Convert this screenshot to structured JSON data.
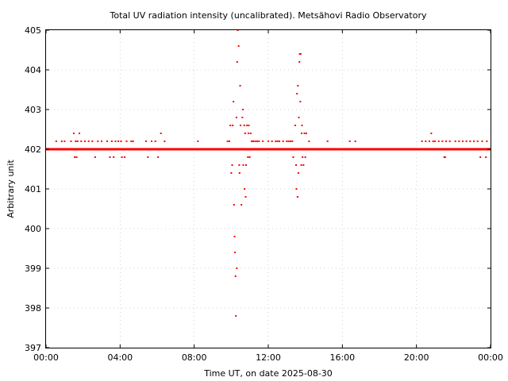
{
  "chart_data": {
    "type": "scatter",
    "title": "Total UV radiation intensity (uncalibrated). Metsähovi Radio Observatory",
    "xlabel": "Time UT, on date 2025-08-30",
    "ylabel": "Arbitrary unit",
    "xlim": [
      0,
      24
    ],
    "ylim": [
      397,
      405
    ],
    "x_ticks": [
      {
        "value": 0,
        "label": "00:00"
      },
      {
        "value": 4,
        "label": "04:00"
      },
      {
        "value": 8,
        "label": "08:00"
      },
      {
        "value": 12,
        "label": "12:00"
      },
      {
        "value": 16,
        "label": "16:00"
      },
      {
        "value": 20,
        "label": "20:00"
      },
      {
        "value": 24,
        "label": "00:00"
      }
    ],
    "y_ticks": [
      {
        "value": 397,
        "label": "397"
      },
      {
        "value": 398,
        "label": "398"
      },
      {
        "value": 399,
        "label": "399"
      },
      {
        "value": 400,
        "label": "400"
      },
      {
        "value": 401,
        "label": "401"
      },
      {
        "value": 402,
        "label": "402"
      },
      {
        "value": 403,
        "label": "403"
      },
      {
        "value": 404,
        "label": "404"
      },
      {
        "value": 405,
        "label": "405"
      }
    ],
    "grid": true,
    "marker_color": "#ff0000",
    "baseline": {
      "value": 402.0,
      "x_start": 0,
      "x_end": 24
    },
    "points": [
      [
        0.55,
        402.2
      ],
      [
        0.85,
        402.2
      ],
      [
        1.0,
        402.2
      ],
      [
        1.35,
        402.2
      ],
      [
        1.5,
        402.4
      ],
      [
        1.55,
        401.8
      ],
      [
        1.6,
        402.2
      ],
      [
        1.65,
        401.8
      ],
      [
        1.7,
        402.2
      ],
      [
        1.8,
        402.4
      ],
      [
        1.9,
        402.2
      ],
      [
        2.1,
        402.2
      ],
      [
        2.3,
        402.2
      ],
      [
        2.5,
        402.2
      ],
      [
        2.65,
        401.8
      ],
      [
        2.8,
        402.2
      ],
      [
        3.0,
        402.2
      ],
      [
        3.3,
        402.2
      ],
      [
        3.45,
        401.8
      ],
      [
        3.55,
        402.2
      ],
      [
        3.65,
        401.8
      ],
      [
        3.75,
        402.2
      ],
      [
        3.9,
        402.2
      ],
      [
        4.05,
        402.2
      ],
      [
        4.1,
        401.8
      ],
      [
        4.25,
        401.8
      ],
      [
        4.35,
        402.2
      ],
      [
        4.6,
        402.2
      ],
      [
        4.7,
        402.2
      ],
      [
        5.4,
        402.2
      ],
      [
        5.5,
        401.8
      ],
      [
        5.7,
        402.2
      ],
      [
        5.9,
        402.2
      ],
      [
        6.05,
        401.8
      ],
      [
        6.2,
        402.4
      ],
      [
        6.4,
        402.2
      ],
      [
        8.2,
        402.2
      ],
      [
        9.8,
        402.2
      ],
      [
        9.9,
        402.2
      ],
      [
        9.95,
        402.6
      ],
      [
        10.0,
        401.4
      ],
      [
        10.05,
        401.6
      ],
      [
        10.08,
        402.6
      ],
      [
        10.12,
        403.2
      ],
      [
        10.15,
        400.6
      ],
      [
        10.18,
        399.8
      ],
      [
        10.2,
        399.4
      ],
      [
        10.23,
        398.8
      ],
      [
        10.25,
        397.8
      ],
      [
        10.28,
        402.8
      ],
      [
        10.3,
        399.0
      ],
      [
        10.32,
        404.2
      ],
      [
        10.35,
        405.0
      ],
      [
        10.4,
        404.6
      ],
      [
        10.43,
        401.6
      ],
      [
        10.45,
        401.4
      ],
      [
        10.48,
        403.6
      ],
      [
        10.5,
        402.6
      ],
      [
        10.55,
        400.6
      ],
      [
        10.6,
        402.8
      ],
      [
        10.63,
        403.0
      ],
      [
        10.65,
        401.6
      ],
      [
        10.7,
        402.6
      ],
      [
        10.72,
        401.0
      ],
      [
        10.75,
        402.4
      ],
      [
        10.78,
        400.8
      ],
      [
        10.8,
        401.6
      ],
      [
        10.85,
        402.6
      ],
      [
        10.9,
        401.8
      ],
      [
        10.93,
        402.4
      ],
      [
        10.95,
        402.6
      ],
      [
        11.0,
        401.8
      ],
      [
        11.05,
        402.4
      ],
      [
        11.1,
        402.2
      ],
      [
        11.15,
        402.2
      ],
      [
        11.2,
        402.2
      ],
      [
        11.3,
        402.2
      ],
      [
        11.4,
        402.2
      ],
      [
        11.5,
        402.2
      ],
      [
        11.7,
        402.2
      ],
      [
        12.0,
        402.2
      ],
      [
        12.2,
        402.2
      ],
      [
        12.4,
        402.2
      ],
      [
        12.5,
        402.2
      ],
      [
        12.6,
        402.2
      ],
      [
        12.8,
        402.2
      ],
      [
        13.0,
        402.2
      ],
      [
        13.1,
        402.2
      ],
      [
        13.2,
        402.2
      ],
      [
        13.3,
        402.2
      ],
      [
        13.35,
        401.8
      ],
      [
        13.45,
        402.6
      ],
      [
        13.5,
        401.6
      ],
      [
        13.52,
        401.0
      ],
      [
        13.55,
        403.4
      ],
      [
        13.58,
        400.8
      ],
      [
        13.6,
        403.6
      ],
      [
        13.62,
        401.4
      ],
      [
        13.65,
        402.8
      ],
      [
        13.68,
        404.2
      ],
      [
        13.7,
        404.4
      ],
      [
        13.73,
        403.2
      ],
      [
        13.75,
        404.4
      ],
      [
        13.78,
        401.6
      ],
      [
        13.8,
        402.4
      ],
      [
        13.82,
        402.6
      ],
      [
        13.85,
        401.8
      ],
      [
        13.9,
        401.6
      ],
      [
        13.95,
        402.4
      ],
      [
        14.0,
        401.8
      ],
      [
        14.05,
        402.4
      ],
      [
        14.2,
        402.2
      ],
      [
        15.2,
        402.2
      ],
      [
        16.4,
        402.2
      ],
      [
        16.7,
        402.2
      ],
      [
        20.3,
        402.2
      ],
      [
        20.5,
        402.2
      ],
      [
        20.7,
        402.2
      ],
      [
        20.8,
        402.4
      ],
      [
        20.9,
        402.2
      ],
      [
        21.0,
        402.2
      ],
      [
        21.2,
        402.2
      ],
      [
        21.4,
        402.2
      ],
      [
        21.5,
        401.8
      ],
      [
        21.55,
        401.8
      ],
      [
        21.6,
        402.2
      ],
      [
        21.8,
        402.2
      ],
      [
        22.1,
        402.2
      ],
      [
        22.3,
        402.2
      ],
      [
        22.5,
        402.2
      ],
      [
        22.7,
        402.2
      ],
      [
        22.9,
        402.2
      ],
      [
        23.1,
        402.2
      ],
      [
        23.3,
        402.2
      ],
      [
        23.45,
        401.8
      ],
      [
        23.55,
        402.2
      ],
      [
        23.75,
        401.8
      ],
      [
        23.8,
        402.2
      ]
    ]
  }
}
